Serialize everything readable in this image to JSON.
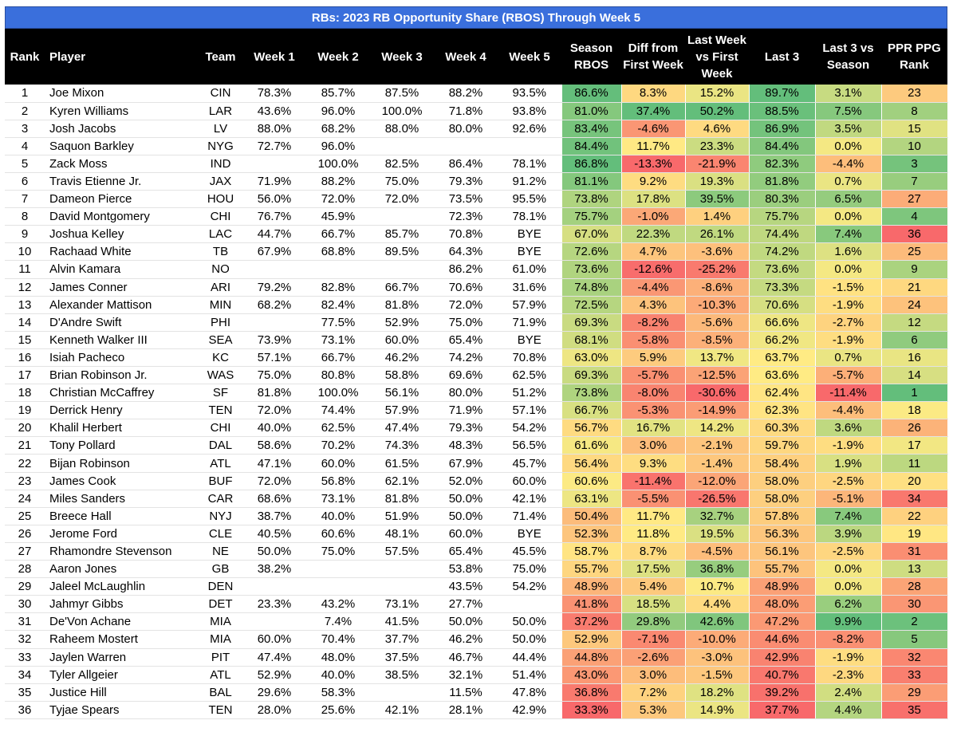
{
  "title": "RBs: 2023 RB Opportunity Share (RBOS) Through Week 5",
  "columns": [
    "Rank",
    "Player",
    "Team",
    "Week 1",
    "Week 2",
    "Week 3",
    "Week 4",
    "Week 5",
    "Season RBOS",
    "Diff from First Week",
    "Last Week vs First Week",
    "Last 3",
    "Last 3 vs Season",
    "PPR PPG Rank"
  ],
  "colors": {
    "header_bg": "#000000",
    "title_bg": "#3a6fdc",
    "heat_low": "#f8696b",
    "heat_mid": "#ffeb84",
    "heat_high": "#63be7b"
  },
  "chart_data": {
    "type": "table",
    "title": "RBs: 2023 RB Opportunity Share (RBOS) Through Week 5",
    "rows": [
      [
        "1",
        "Joe Mixon",
        "CIN",
        "78.3%",
        "85.7%",
        "87.5%",
        "88.2%",
        "93.5%",
        "86.6%",
        "8.3%",
        "15.2%",
        "89.7%",
        "3.1%",
        "23"
      ],
      [
        "2",
        "Kyren Williams",
        "LAR",
        "43.6%",
        "96.0%",
        "100.0%",
        "71.8%",
        "93.8%",
        "81.0%",
        "37.4%",
        "50.2%",
        "88.5%",
        "7.5%",
        "8"
      ],
      [
        "3",
        "Josh Jacobs",
        "LV",
        "88.0%",
        "68.2%",
        "88.0%",
        "80.0%",
        "92.6%",
        "83.4%",
        "-4.6%",
        "4.6%",
        "86.9%",
        "3.5%",
        "15"
      ],
      [
        "4",
        "Saquon Barkley",
        "NYG",
        "72.7%",
        "96.0%",
        "",
        "",
        "",
        "84.4%",
        "11.7%",
        "23.3%",
        "84.4%",
        "0.0%",
        "10"
      ],
      [
        "5",
        "Zack Moss",
        "IND",
        "",
        "100.0%",
        "82.5%",
        "86.4%",
        "78.1%",
        "86.8%",
        "-13.3%",
        "-21.9%",
        "82.3%",
        "-4.4%",
        "3"
      ],
      [
        "6",
        "Travis Etienne Jr.",
        "JAX",
        "71.9%",
        "88.2%",
        "75.0%",
        "79.3%",
        "91.2%",
        "81.1%",
        "9.2%",
        "19.3%",
        "81.8%",
        "0.7%",
        "7"
      ],
      [
        "7",
        "Dameon Pierce",
        "HOU",
        "56.0%",
        "72.0%",
        "72.0%",
        "73.5%",
        "95.5%",
        "73.8%",
        "17.8%",
        "39.5%",
        "80.3%",
        "6.5%",
        "27"
      ],
      [
        "8",
        "David Montgomery",
        "CHI",
        "76.7%",
        "45.9%",
        "",
        "72.3%",
        "78.1%",
        "75.7%",
        "-1.0%",
        "1.4%",
        "75.7%",
        "0.0%",
        "4"
      ],
      [
        "9",
        "Joshua Kelley",
        "LAC",
        "44.7%",
        "66.7%",
        "85.7%",
        "70.8%",
        "BYE",
        "67.0%",
        "22.3%",
        "26.1%",
        "74.4%",
        "7.4%",
        "36"
      ],
      [
        "10",
        "Rachaad White",
        "TB",
        "67.9%",
        "68.8%",
        "89.5%",
        "64.3%",
        "BYE",
        "72.6%",
        "4.7%",
        "-3.6%",
        "74.2%",
        "1.6%",
        "25"
      ],
      [
        "11",
        "Alvin Kamara",
        "NO",
        "",
        "",
        "",
        "86.2%",
        "61.0%",
        "73.6%",
        "-12.6%",
        "-25.2%",
        "73.6%",
        "0.0%",
        "9"
      ],
      [
        "12",
        "James Conner",
        "ARI",
        "79.2%",
        "82.8%",
        "66.7%",
        "70.6%",
        "31.6%",
        "74.8%",
        "-4.4%",
        "-8.6%",
        "73.3%",
        "-1.5%",
        "21"
      ],
      [
        "13",
        "Alexander Mattison",
        "MIN",
        "68.2%",
        "82.4%",
        "81.8%",
        "72.0%",
        "57.9%",
        "72.5%",
        "4.3%",
        "-10.3%",
        "70.6%",
        "-1.9%",
        "24"
      ],
      [
        "14",
        "D'Andre Swift",
        "PHI",
        "",
        "77.5%",
        "52.9%",
        "75.0%",
        "71.9%",
        "69.3%",
        "-8.2%",
        "-5.6%",
        "66.6%",
        "-2.7%",
        "12"
      ],
      [
        "15",
        "Kenneth Walker III",
        "SEA",
        "73.9%",
        "73.1%",
        "60.0%",
        "65.4%",
        "BYE",
        "68.1%",
        "-5.8%",
        "-8.5%",
        "66.2%",
        "-1.9%",
        "6"
      ],
      [
        "16",
        "Isiah Pacheco",
        "KC",
        "57.1%",
        "66.7%",
        "46.2%",
        "74.2%",
        "70.8%",
        "63.0%",
        "5.9%",
        "13.7%",
        "63.7%",
        "0.7%",
        "16"
      ],
      [
        "17",
        "Brian Robinson Jr.",
        "WAS",
        "75.0%",
        "80.8%",
        "58.8%",
        "69.6%",
        "62.5%",
        "69.3%",
        "-5.7%",
        "-12.5%",
        "63.6%",
        "-5.7%",
        "14"
      ],
      [
        "18",
        "Christian McCaffrey",
        "SF",
        "81.8%",
        "100.0%",
        "56.1%",
        "80.0%",
        "51.2%",
        "73.8%",
        "-8.0%",
        "-30.6%",
        "62.4%",
        "-11.4%",
        "1"
      ],
      [
        "19",
        "Derrick Henry",
        "TEN",
        "72.0%",
        "74.4%",
        "57.9%",
        "71.9%",
        "57.1%",
        "66.7%",
        "-5.3%",
        "-14.9%",
        "62.3%",
        "-4.4%",
        "18"
      ],
      [
        "20",
        "Khalil Herbert",
        "CHI",
        "40.0%",
        "62.5%",
        "47.4%",
        "79.3%",
        "54.2%",
        "56.7%",
        "16.7%",
        "14.2%",
        "60.3%",
        "3.6%",
        "26"
      ],
      [
        "21",
        "Tony Pollard",
        "DAL",
        "58.6%",
        "70.2%",
        "74.3%",
        "48.3%",
        "56.5%",
        "61.6%",
        "3.0%",
        "-2.1%",
        "59.7%",
        "-1.9%",
        "17"
      ],
      [
        "22",
        "Bijan Robinson",
        "ATL",
        "47.1%",
        "60.0%",
        "61.5%",
        "67.9%",
        "45.7%",
        "56.4%",
        "9.3%",
        "-1.4%",
        "58.4%",
        "1.9%",
        "11"
      ],
      [
        "23",
        "James Cook",
        "BUF",
        "72.0%",
        "56.8%",
        "62.1%",
        "52.0%",
        "60.0%",
        "60.6%",
        "-11.4%",
        "-12.0%",
        "58.0%",
        "-2.5%",
        "20"
      ],
      [
        "24",
        "Miles Sanders",
        "CAR",
        "68.6%",
        "73.1%",
        "81.8%",
        "50.0%",
        "42.1%",
        "63.1%",
        "-5.5%",
        "-26.5%",
        "58.0%",
        "-5.1%",
        "34"
      ],
      [
        "25",
        "Breece Hall",
        "NYJ",
        "38.7%",
        "40.0%",
        "51.9%",
        "50.0%",
        "71.4%",
        "50.4%",
        "11.7%",
        "32.7%",
        "57.8%",
        "7.4%",
        "22"
      ],
      [
        "26",
        "Jerome Ford",
        "CLE",
        "40.5%",
        "60.6%",
        "48.1%",
        "60.0%",
        "BYE",
        "52.3%",
        "11.8%",
        "19.5%",
        "56.3%",
        "3.9%",
        "19"
      ],
      [
        "27",
        "Rhamondre Stevenson",
        "NE",
        "50.0%",
        "75.0%",
        "57.5%",
        "65.4%",
        "45.5%",
        "58.7%",
        "8.7%",
        "-4.5%",
        "56.1%",
        "-2.5%",
        "31"
      ],
      [
        "28",
        "Aaron Jones",
        "GB",
        "38.2%",
        "",
        "",
        "53.8%",
        "75.0%",
        "55.7%",
        "17.5%",
        "36.8%",
        "55.7%",
        "0.0%",
        "13"
      ],
      [
        "29",
        "Jaleel McLaughlin",
        "DEN",
        "",
        "",
        "",
        "43.5%",
        "54.2%",
        "48.9%",
        "5.4%",
        "10.7%",
        "48.9%",
        "0.0%",
        "28"
      ],
      [
        "30",
        "Jahmyr Gibbs",
        "DET",
        "23.3%",
        "43.2%",
        "73.1%",
        "27.7%",
        "",
        "41.8%",
        "18.5%",
        "4.4%",
        "48.0%",
        "6.2%",
        "30"
      ],
      [
        "31",
        "De'Von Achane",
        "MIA",
        "",
        "7.4%",
        "41.5%",
        "50.0%",
        "50.0%",
        "37.2%",
        "29.8%",
        "42.6%",
        "47.2%",
        "9.9%",
        "2"
      ],
      [
        "32",
        "Raheem Mostert",
        "MIA",
        "60.0%",
        "70.4%",
        "37.7%",
        "46.2%",
        "50.0%",
        "52.9%",
        "-7.1%",
        "-10.0%",
        "44.6%",
        "-8.2%",
        "5"
      ],
      [
        "33",
        "Jaylen Warren",
        "PIT",
        "47.4%",
        "48.0%",
        "37.5%",
        "46.7%",
        "44.4%",
        "44.8%",
        "-2.6%",
        "-3.0%",
        "42.9%",
        "-1.9%",
        "32"
      ],
      [
        "34",
        "Tyler Allgeier",
        "ATL",
        "52.9%",
        "40.0%",
        "38.5%",
        "32.1%",
        "51.4%",
        "43.0%",
        "3.0%",
        "-1.5%",
        "40.7%",
        "-2.3%",
        "33"
      ],
      [
        "35",
        "Justice Hill",
        "BAL",
        "29.6%",
        "58.3%",
        "",
        "11.5%",
        "47.8%",
        "36.8%",
        "7.2%",
        "18.2%",
        "39.2%",
        "2.4%",
        "29"
      ],
      [
        "36",
        "Tyjae Spears",
        "TEN",
        "28.0%",
        "25.6%",
        "42.1%",
        "28.1%",
        "42.9%",
        "33.3%",
        "5.3%",
        "14.9%",
        "37.7%",
        "4.4%",
        "35"
      ]
    ]
  }
}
